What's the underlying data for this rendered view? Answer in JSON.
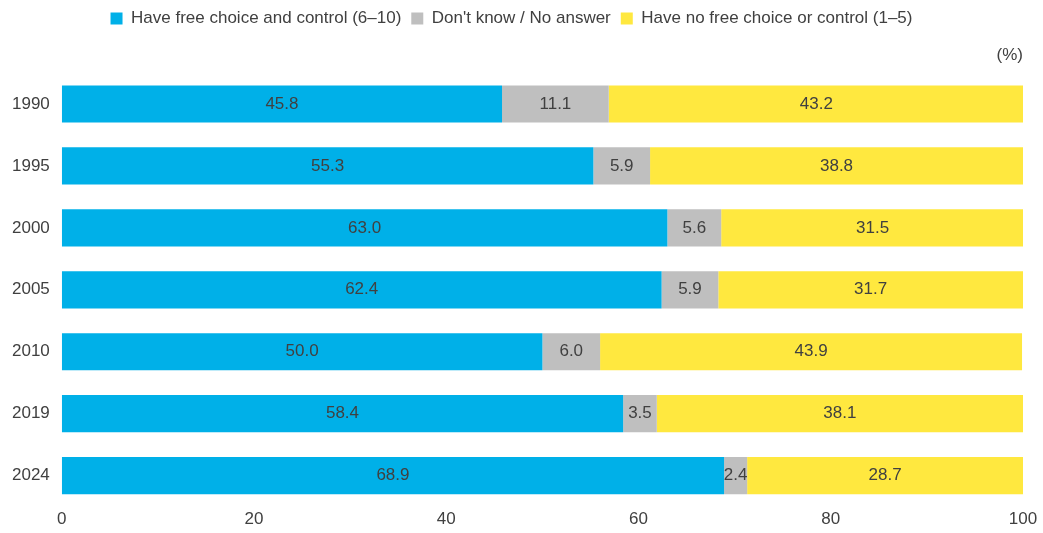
{
  "chart_data": {
    "type": "bar",
    "orientation": "horizontal",
    "stacked": true,
    "categories": [
      "1990",
      "1995",
      "2000",
      "2005",
      "2010",
      "2019",
      "2024"
    ],
    "series": [
      {
        "name": "Have free choice and control (6–10)",
        "color": "#00b0e8",
        "values": [
          45.8,
          55.3,
          63.0,
          62.4,
          50.0,
          58.4,
          68.9
        ],
        "value_labels": [
          "45.8",
          "55.3",
          "63.0",
          "62.4",
          "50.0",
          "58.4",
          "68.9"
        ]
      },
      {
        "name": "Don't know / No answer",
        "color": "#bfbfbf",
        "values": [
          11.1,
          5.9,
          5.6,
          5.9,
          6.0,
          3.5,
          2.4
        ],
        "value_labels": [
          "11.1",
          "5.9",
          "5.6",
          "5.9",
          "6.0",
          "3.5",
          "2.4"
        ]
      },
      {
        "name": "Have no free choice or control (1–5)",
        "color": "#ffe83f",
        "values": [
          43.2,
          38.8,
          31.5,
          31.7,
          43.9,
          38.1,
          28.7
        ],
        "value_labels": [
          "43.2",
          "38.8",
          "31.5",
          "31.7",
          "43.9",
          "38.1",
          "28.7"
        ]
      }
    ],
    "xlim": [
      0,
      100
    ],
    "xticks": [
      0,
      20,
      40,
      60,
      80,
      100
    ],
    "grid": false,
    "legend": "top",
    "annotations": [
      "(%)"
    ]
  }
}
